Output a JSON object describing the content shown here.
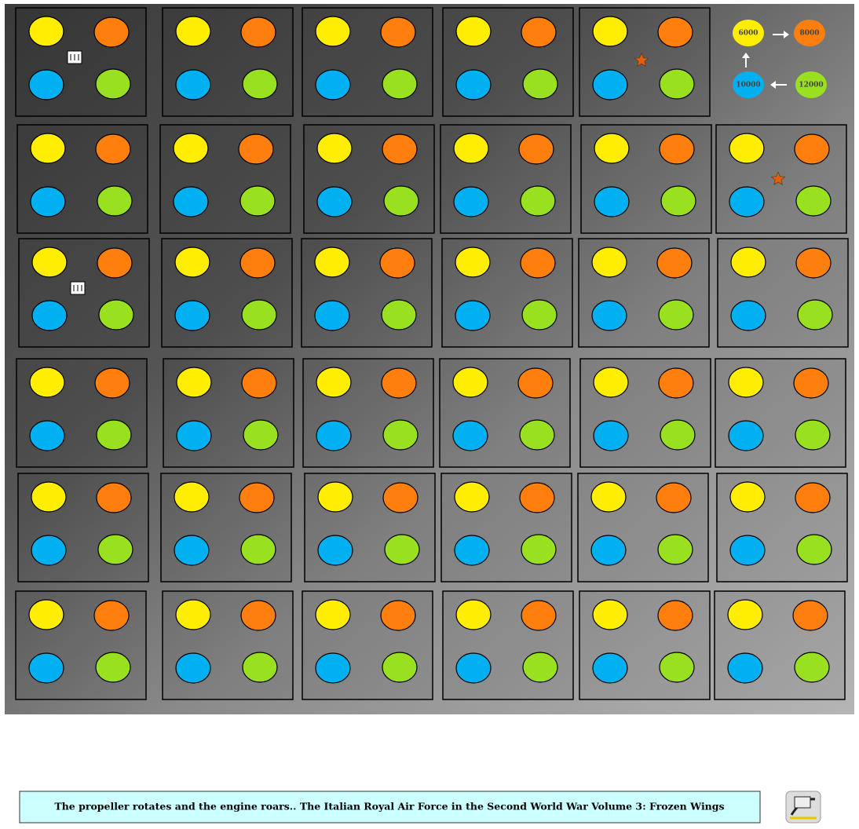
{
  "legend": {
    "items": [
      {
        "label": "6000",
        "color": "#ffee00"
      },
      {
        "label": "8000",
        "color": "#ff7f0e"
      },
      {
        "label": "10000",
        "color": "#00b0f0"
      },
      {
        "label": "12000",
        "color": "#99e020"
      }
    ]
  },
  "footer": {
    "caption": "The propeller rotates and the engine roars.. The Italian Royal Air Force in the Second World War Volume 3: Frozen Wings"
  }
}
